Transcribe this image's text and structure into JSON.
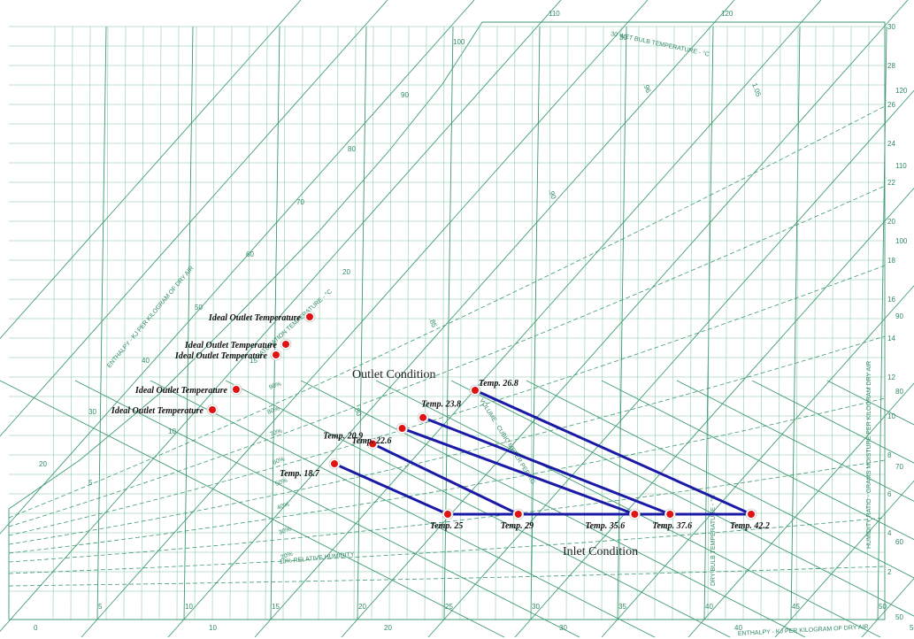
{
  "chart_data": {
    "type": "scatter",
    "title": "",
    "chart_kind": "psychrometric chart with evaporative cooling process lines",
    "enthalpy_ticks_top": [
      "110",
      "120"
    ],
    "enthalpy_ticks_diagonal": [
      "100",
      "90",
      "80",
      "70",
      "60",
      "50",
      "40",
      "30",
      "20"
    ],
    "enthalpy_ticks_bottom": [
      "0",
      "10",
      "20",
      "30",
      "40",
      "50"
    ],
    "humidity_ratio_ticks": [
      "30",
      "28",
      "26",
      "24",
      "22",
      "20",
      "18",
      "16",
      "14",
      "12",
      "10",
      "8",
      "6",
      "4",
      "2"
    ],
    "dew_point_ticks": [
      "120",
      "110",
      "100",
      "90",
      "80",
      "70",
      "60",
      "50"
    ],
    "wet_bulb_ticks": [
      "30",
      "20",
      "15",
      "10",
      "5"
    ],
    "dry_bulb_ticks": [
      "5",
      "10",
      "15",
      "20",
      "25",
      "30",
      "35",
      "40",
      "45",
      "50"
    ],
    "volume_ticks": [
      ".96",
      ".90",
      ".85",
      ".80",
      "1.05"
    ],
    "axis_labels": {
      "enthalpy_diagonal": "ENTHALPY - KJ PER KILOGRAM OF DRY AIR",
      "enthalpy_bottom": "ENTHALPY - KJ PER KILOGRAM OF DRY AIR",
      "humidity_ratio": "HUMIDITY RATIO - GRAMS MOISTURE PER KILOGRAM DRY AIR",
      "wet_bulb": "30 WET BULB TEMPERATURE - °C",
      "saturation": "SATURATION TEMPERATURE - °C",
      "relative_humidity": "10% RELATIVE HUMIDITY",
      "volume": "VOLUME - CUBIC METER PER KG",
      "dry_bulb": "DRY BULB TEMPERATURE - °C"
    },
    "rh_labels": [
      "90%",
      "80%",
      "70%",
      "60%",
      "50%",
      "40%",
      "30%",
      "20%"
    ],
    "annotations": {
      "outlet_condition": "Outlet Condition",
      "inlet_condition": "Inlet Condition"
    },
    "ideal_outlet_label": "Ideal Outlet Temperature",
    "processes": [
      {
        "inlet_label": "Temp. 25",
        "inlet_temp": 25,
        "outlet_label": "Temp. 18.7",
        "outlet_temp": 18.7
      },
      {
        "inlet_label": "Temp. 29",
        "inlet_temp": 29,
        "outlet_label": "Temp. 20.9",
        "outlet_temp": 20.9
      },
      {
        "inlet_label": "Temp. 35.6",
        "inlet_temp": 35.6,
        "outlet_label": "Temp. 22.6",
        "outlet_temp": 22.6
      },
      {
        "inlet_label": "Temp. 37.6",
        "inlet_temp": 37.6,
        "outlet_label": "Temp. 23.8",
        "outlet_temp": 23.8
      },
      {
        "inlet_label": "Temp. 42.2",
        "inlet_temp": 42.2,
        "outlet_label": "Temp. 26.8",
        "outlet_temp": 26.8
      }
    ],
    "ideal_outlet_count": 5,
    "colors": {
      "grid": "#3d9a70",
      "process_line": "#1a1aa6",
      "point": "#e01313"
    }
  }
}
